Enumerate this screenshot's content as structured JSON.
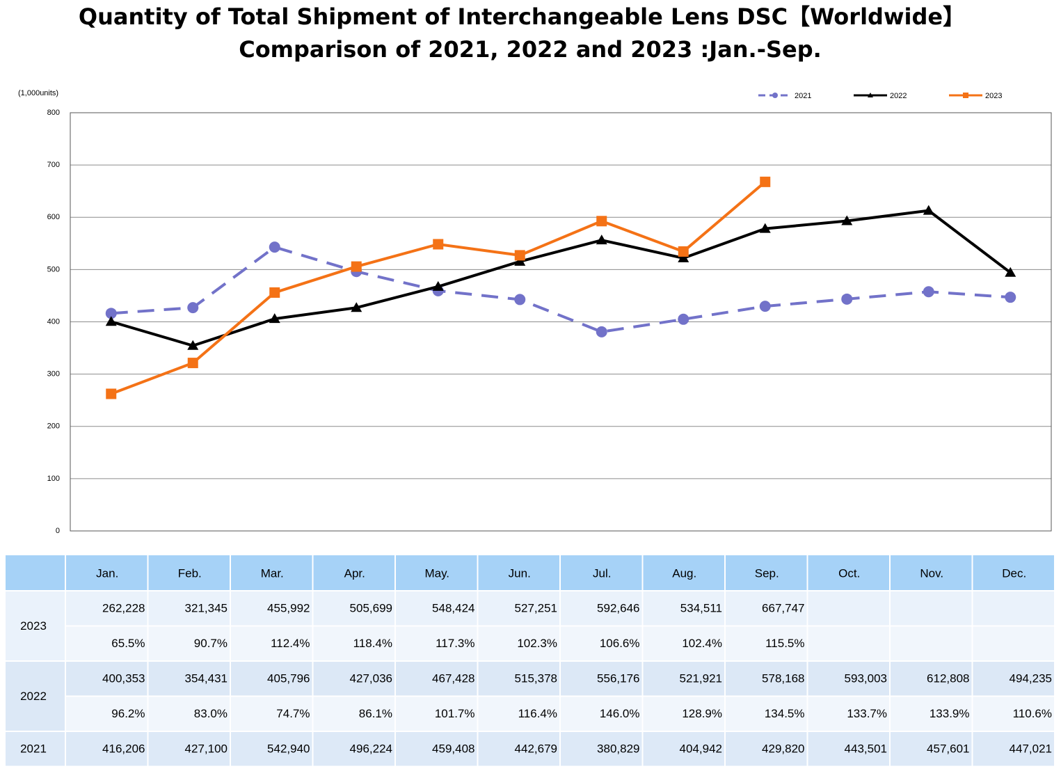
{
  "chart_data": {
    "type": "line",
    "title": "Quantity of Total Shipment of Interchangeable Lens DSC【Worldwide】",
    "subtitle": "Comparison of 2021, 2022 and 2023 :Jan.-Sep.",
    "y_unit_label": "(1,000units)",
    "categories": [
      null,
      null,
      null,
      null,
      null,
      null,
      null,
      null,
      null,
      null,
      null,
      null
    ],
    "ylim": [
      0,
      800
    ],
    "yticks": [
      0,
      100,
      200,
      300,
      400,
      500,
      600,
      700,
      800
    ],
    "grid": true,
    "legend": "top-right",
    "series": [
      {
        "name": "2021",
        "color": "#7272c9",
        "dashed": true,
        "marker": "circle",
        "values": [
          416.206,
          427.1,
          542.94,
          496.224,
          459.408,
          442.679,
          380.829,
          404.942,
          429.82,
          443.501,
          457.601,
          447.021
        ]
      },
      {
        "name": "2022",
        "color": "#000000",
        "dashed": false,
        "marker": "triangle",
        "values": [
          400.353,
          354.431,
          405.796,
          427.036,
          467.428,
          515.378,
          556.176,
          521.921,
          578.168,
          593.003,
          612.808,
          494.235
        ]
      },
      {
        "name": "2023",
        "color": "#f47216",
        "dashed": false,
        "marker": "square",
        "values": [
          262.228,
          321.345,
          455.992,
          505.699,
          548.424,
          527.251,
          592.646,
          534.511,
          667.747,
          null,
          null,
          null
        ]
      }
    ]
  },
  "table": {
    "columns": [
      "Jan.",
      "Feb.",
      "Mar.",
      "Apr.",
      "May.",
      "Jun.",
      "Jul.",
      "Aug.",
      "Sep.",
      "Oct.",
      "Nov.",
      "Dec."
    ],
    "rows": [
      {
        "label": "2023",
        "lines": [
          [
            "262,228",
            "321,345",
            "455,992",
            "505,699",
            "548,424",
            "527,251",
            "592,646",
            "534,511",
            "667,747"
          ],
          [
            "65.5%",
            "90.7%",
            "112.4%",
            "118.4%",
            "117.3%",
            "102.3%",
            "106.6%",
            "102.4%",
            "115.5%"
          ]
        ]
      },
      {
        "label": "2022",
        "lines": [
          [
            "400,353",
            "354,431",
            "405,796",
            "427,036",
            "467,428",
            "515,378",
            "556,176",
            "521,921",
            "578,168",
            "593,003",
            "612,808",
            "494,235"
          ],
          [
            "96.2%",
            "83.0%",
            "74.7%",
            "86.1%",
            "101.7%",
            "116.4%",
            "146.0%",
            "128.9%",
            "134.5%",
            "133.7%",
            "133.9%",
            "110.6%"
          ]
        ]
      },
      {
        "label": "2021",
        "lines": [
          [
            "416,206",
            "427,100",
            "542,940",
            "496,224",
            "459,408",
            "442,679",
            "380,829",
            "404,942",
            "429,820",
            "443,501",
            "457,601",
            "447,021"
          ]
        ]
      }
    ]
  }
}
